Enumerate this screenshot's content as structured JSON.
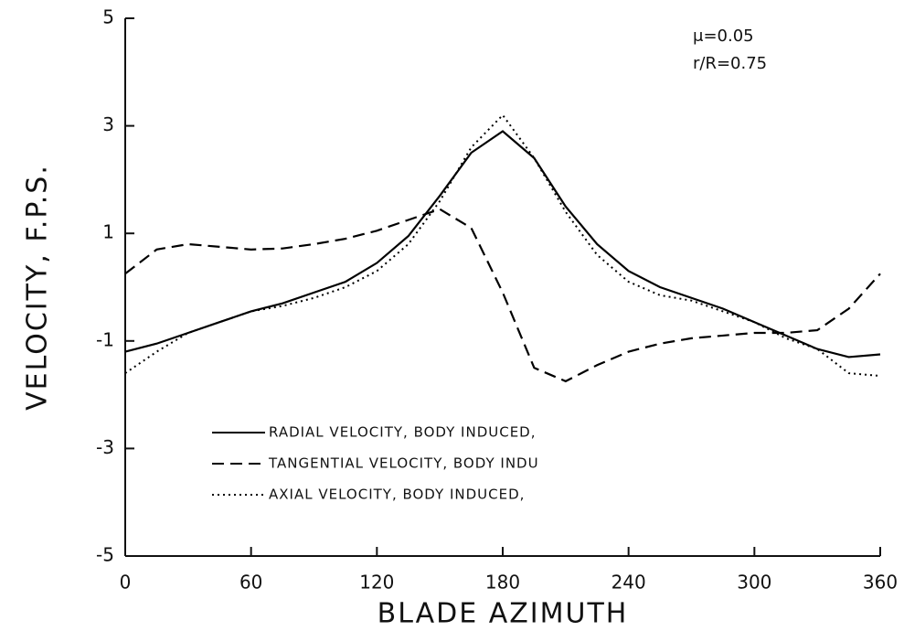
{
  "chart_data": {
    "type": "line",
    "xlabel": "BLADE AZIMUTH",
    "ylabel": "VELOCITY, F.P.S.",
    "annotations": [
      "μ=0.05",
      "r/R=0.75"
    ],
    "x": [
      0,
      15,
      30,
      45,
      60,
      75,
      90,
      105,
      120,
      135,
      150,
      165,
      180,
      195,
      210,
      225,
      240,
      255,
      270,
      285,
      300,
      315,
      330,
      345,
      360
    ],
    "series": [
      {
        "name": "RADIAL VELOCITY, BODY INDUCED,",
        "color": "#000000",
        "line_style": "solid",
        "values": [
          -1.2,
          -1.05,
          -0.85,
          -0.65,
          -0.45,
          -0.3,
          -0.1,
          0.1,
          0.45,
          0.95,
          1.7,
          2.5,
          2.9,
          2.4,
          1.5,
          0.8,
          0.3,
          0.0,
          -0.2,
          -0.4,
          -0.65,
          -0.9,
          -1.15,
          -1.3,
          -1.25
        ]
      },
      {
        "name": "TANGENTIAL VELOCITY, BODY INDU",
        "color": "#000000",
        "line_style": "dashed",
        "values": [
          0.25,
          0.7,
          0.8,
          0.75,
          0.7,
          0.72,
          0.8,
          0.9,
          1.05,
          1.25,
          1.45,
          1.1,
          -0.1,
          -1.5,
          -1.75,
          -1.45,
          -1.2,
          -1.05,
          -0.95,
          -0.9,
          -0.85,
          -0.85,
          -0.8,
          -0.4,
          0.25
        ]
      },
      {
        "name": "AXIAL VELOCITY, BODY INDUCED,",
        "color": "#000000",
        "line_style": "dotted",
        "values": [
          -1.6,
          -1.2,
          -0.85,
          -0.65,
          -0.45,
          -0.35,
          -0.2,
          0.0,
          0.3,
          0.8,
          1.6,
          2.6,
          3.2,
          2.4,
          1.4,
          0.6,
          0.1,
          -0.15,
          -0.25,
          -0.45,
          -0.65,
          -0.95,
          -1.15,
          -1.6,
          -1.65
        ]
      }
    ],
    "xlim": [
      0,
      360
    ],
    "xticks": [
      0,
      60,
      120,
      180,
      240,
      300,
      360
    ],
    "ylim": [
      -5,
      5
    ],
    "yticks": [
      -5,
      -3,
      -1,
      1,
      3,
      5
    ],
    "grid": false
  }
}
